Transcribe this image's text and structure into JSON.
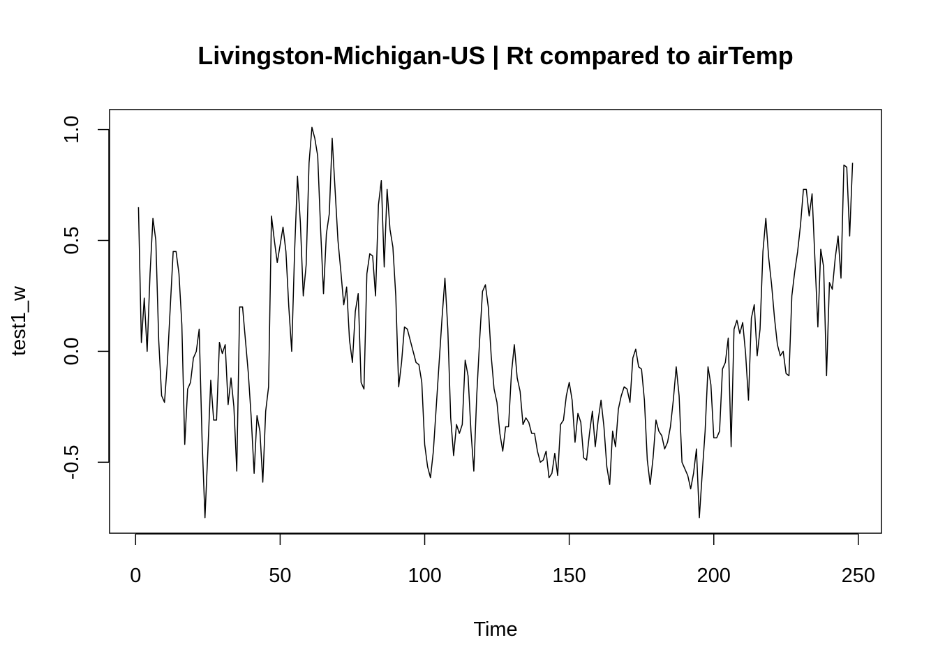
{
  "chart_data": {
    "type": "line",
    "title": "Livingston-Michigan-US | Rt compared to airTemp",
    "xlabel": "Time",
    "ylabel": "test1_w",
    "xlim": [
      -9,
      258
    ],
    "ylim": [
      -0.82,
      1.09
    ],
    "x_ticks": [
      0,
      50,
      100,
      150,
      200,
      250
    ],
    "y_ticks": [
      -0.5,
      0.0,
      0.5,
      1.0
    ],
    "x_tick_labels": [
      "0",
      "50",
      "100",
      "150",
      "200",
      "250"
    ],
    "y_tick_labels": [
      "-0.5",
      "0.0",
      "0.5",
      "1.0"
    ],
    "grid": false,
    "legend": "none",
    "line_color": "#000000",
    "series": [
      {
        "x_start": 1,
        "values": [
          0.65,
          0.04,
          0.24,
          0.0,
          0.35,
          0.6,
          0.5,
          0.05,
          -0.2,
          -0.23,
          -0.05,
          0.2,
          0.45,
          0.45,
          0.35,
          0.12,
          -0.42,
          -0.17,
          -0.14,
          -0.03,
          0.0,
          0.1,
          -0.4,
          -0.75,
          -0.45,
          -0.13,
          -0.31,
          -0.31,
          0.04,
          -0.01,
          0.03,
          -0.24,
          -0.12,
          -0.25,
          -0.54,
          0.2,
          0.2,
          0.05,
          -0.1,
          -0.3,
          -0.55,
          -0.29,
          -0.36,
          -0.59,
          -0.27,
          -0.16,
          0.61,
          0.5,
          0.4,
          0.48,
          0.56,
          0.45,
          0.2,
          0.0,
          0.45,
          0.79,
          0.58,
          0.25,
          0.39,
          0.85,
          1.01,
          0.96,
          0.88,
          0.55,
          0.26,
          0.53,
          0.62,
          0.96,
          0.73,
          0.5,
          0.36,
          0.21,
          0.29,
          0.05,
          -0.05,
          0.18,
          0.26,
          -0.14,
          -0.17,
          0.35,
          0.44,
          0.43,
          0.25,
          0.66,
          0.77,
          0.38,
          0.73,
          0.55,
          0.47,
          0.25,
          -0.16,
          -0.05,
          0.11,
          0.1,
          0.05,
          0.0,
          -0.05,
          -0.06,
          -0.14,
          -0.42,
          -0.52,
          -0.57,
          -0.45,
          -0.25,
          -0.05,
          0.15,
          0.33,
          0.1,
          -0.3,
          -0.47,
          -0.33,
          -0.37,
          -0.33,
          -0.04,
          -0.11,
          -0.36,
          -0.54,
          -0.2,
          0.05,
          0.27,
          0.3,
          0.2,
          -0.02,
          -0.17,
          -0.23,
          -0.37,
          -0.45,
          -0.34,
          -0.34,
          -0.1,
          0.03,
          -0.12,
          -0.18,
          -0.33,
          -0.3,
          -0.32,
          -0.37,
          -0.37,
          -0.45,
          -0.5,
          -0.49,
          -0.45,
          -0.57,
          -0.55,
          -0.46,
          -0.56,
          -0.33,
          -0.31,
          -0.2,
          -0.14,
          -0.22,
          -0.41,
          -0.28,
          -0.32,
          -0.48,
          -0.49,
          -0.37,
          -0.27,
          -0.43,
          -0.31,
          -0.22,
          -0.34,
          -0.52,
          -0.6,
          -0.36,
          -0.43,
          -0.26,
          -0.2,
          -0.16,
          -0.17,
          -0.23,
          -0.03,
          0.01,
          -0.07,
          -0.08,
          -0.22,
          -0.49,
          -0.6,
          -0.48,
          -0.31,
          -0.36,
          -0.38,
          -0.44,
          -0.41,
          -0.34,
          -0.22,
          -0.07,
          -0.2,
          -0.5,
          -0.53,
          -0.56,
          -0.62,
          -0.55,
          -0.44,
          -0.75,
          -0.55,
          -0.36,
          -0.07,
          -0.15,
          -0.39,
          -0.39,
          -0.36,
          -0.08,
          -0.05,
          0.06,
          -0.43,
          0.1,
          0.14,
          0.08,
          0.13,
          -0.01,
          -0.22,
          0.15,
          0.21,
          -0.02,
          0.1,
          0.45,
          0.6,
          0.42,
          0.3,
          0.15,
          0.03,
          -0.02,
          0.0,
          -0.1,
          -0.11,
          0.25,
          0.36,
          0.45,
          0.57,
          0.73,
          0.73,
          0.61,
          0.71,
          0.41,
          0.11,
          0.46,
          0.38,
          -0.11,
          0.31,
          0.28,
          0.42,
          0.52,
          0.33,
          0.84,
          0.83,
          0.52,
          0.85
        ]
      }
    ]
  }
}
